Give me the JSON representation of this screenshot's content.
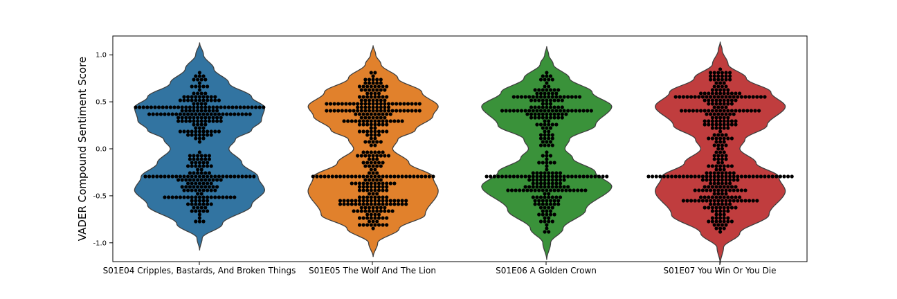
{
  "chart_data": {
    "type": "violin",
    "overlay": "swarm",
    "title": "",
    "xlabel": "",
    "ylabel": "VADER Compound Sentiment Score",
    "ylim": [
      -1.2,
      1.2
    ],
    "yticks": [
      "1.0",
      "0.5",
      "0.0",
      "-0.5",
      "-1.0"
    ],
    "ytick_values": [
      1.0,
      0.5,
      0.0,
      -0.5,
      -1.0
    ],
    "grid": false,
    "point_color": "#000000",
    "categories": [
      "S01E04 Cripples, Bastards, And Broken Things",
      "S01E05 The Wolf And The Lion",
      "S01E06 A Golden Crown",
      "S01E07 You Win Or You Die"
    ],
    "series": [
      {
        "color": "#3274a1",
        "range": [
          -1.08,
          1.13
        ],
        "approx_point_count": 240,
        "modes": [
          0.44,
          -0.44
        ],
        "density_profile": [
          [
            -1.08,
            0
          ],
          [
            -0.95,
            0.04
          ],
          [
            -0.8,
            0.35
          ],
          [
            -0.6,
            0.8
          ],
          [
            -0.44,
            1.0
          ],
          [
            -0.3,
            0.9
          ],
          [
            -0.15,
            0.65
          ],
          [
            0.0,
            0.45
          ],
          [
            0.1,
            0.55
          ],
          [
            0.2,
            0.8
          ],
          [
            0.3,
            0.95
          ],
          [
            0.44,
            1.0
          ],
          [
            0.55,
            0.8
          ],
          [
            0.7,
            0.45
          ],
          [
            0.85,
            0.22
          ],
          [
            1.0,
            0.06
          ],
          [
            1.13,
            0
          ]
        ],
        "dense_values": [
          {
            "y": 0.44,
            "n": 26
          },
          {
            "y": -0.3,
            "n": 22
          },
          {
            "y": 0.35,
            "n": 14
          },
          {
            "y": -0.52,
            "n": 12
          }
        ]
      },
      {
        "color": "#e1812c",
        "range": [
          -1.15,
          1.1
        ],
        "approx_point_count": 280,
        "modes": [
          0.45,
          -0.45
        ],
        "density_profile": [
          [
            -1.15,
            0
          ],
          [
            -1.0,
            0.07
          ],
          [
            -0.85,
            0.4
          ],
          [
            -0.7,
            0.8
          ],
          [
            -0.45,
            1.0
          ],
          [
            -0.3,
            0.92
          ],
          [
            -0.15,
            0.55
          ],
          [
            0.0,
            0.3
          ],
          [
            0.1,
            0.38
          ],
          [
            0.2,
            0.65
          ],
          [
            0.35,
            0.92
          ],
          [
            0.45,
            1.0
          ],
          [
            0.6,
            0.75
          ],
          [
            0.75,
            0.38
          ],
          [
            0.9,
            0.12
          ],
          [
            1.0,
            0.04
          ],
          [
            1.1,
            0
          ]
        ],
        "dense_values": [
          {
            "y": -0.29,
            "n": 30
          },
          {
            "y": 0.47,
            "n": 20
          },
          {
            "y": 0.4,
            "n": 16
          },
          {
            "y": -0.6,
            "n": 12
          }
        ]
      },
      {
        "color": "#3a923a",
        "range": [
          -1.18,
          1.09
        ],
        "approx_point_count": 220,
        "modes": [
          0.45,
          -0.4
        ],
        "density_profile": [
          [
            -1.18,
            0
          ],
          [
            -1.0,
            0.06
          ],
          [
            -0.85,
            0.25
          ],
          [
            -0.65,
            0.6
          ],
          [
            -0.4,
            1.0
          ],
          [
            -0.25,
            0.75
          ],
          [
            -0.1,
            0.4
          ],
          [
            0.0,
            0.28
          ],
          [
            0.1,
            0.35
          ],
          [
            0.25,
            0.75
          ],
          [
            0.45,
            1.0
          ],
          [
            0.6,
            0.7
          ],
          [
            0.75,
            0.35
          ],
          [
            0.9,
            0.1
          ],
          [
            1.0,
            0.03
          ],
          [
            1.09,
            0
          ]
        ],
        "dense_values": [
          {
            "y": -0.3,
            "n": 26
          },
          {
            "y": 0.55,
            "n": 14
          },
          {
            "y": 0.42,
            "n": 14
          },
          {
            "y": -0.45,
            "n": 10
          }
        ]
      },
      {
        "color": "#c03d3e",
        "range": [
          -1.22,
          1.14
        ],
        "approx_point_count": 270,
        "modes": [
          0.45,
          -0.45
        ],
        "density_profile": [
          [
            -1.22,
            0
          ],
          [
            -1.05,
            0.05
          ],
          [
            -0.9,
            0.3
          ],
          [
            -0.7,
            0.75
          ],
          [
            -0.45,
            1.0
          ],
          [
            -0.3,
            0.9
          ],
          [
            -0.15,
            0.55
          ],
          [
            0.0,
            0.3
          ],
          [
            0.1,
            0.38
          ],
          [
            0.25,
            0.72
          ],
          [
            0.45,
            1.0
          ],
          [
            0.6,
            0.78
          ],
          [
            0.75,
            0.4
          ],
          [
            0.9,
            0.12
          ],
          [
            1.05,
            0.03
          ],
          [
            1.14,
            0
          ]
        ],
        "dense_values": [
          {
            "y": -0.3,
            "n": 32
          },
          {
            "y": 0.55,
            "n": 18
          },
          {
            "y": 0.42,
            "n": 18
          },
          {
            "y": -0.55,
            "n": 12
          }
        ]
      }
    ]
  }
}
